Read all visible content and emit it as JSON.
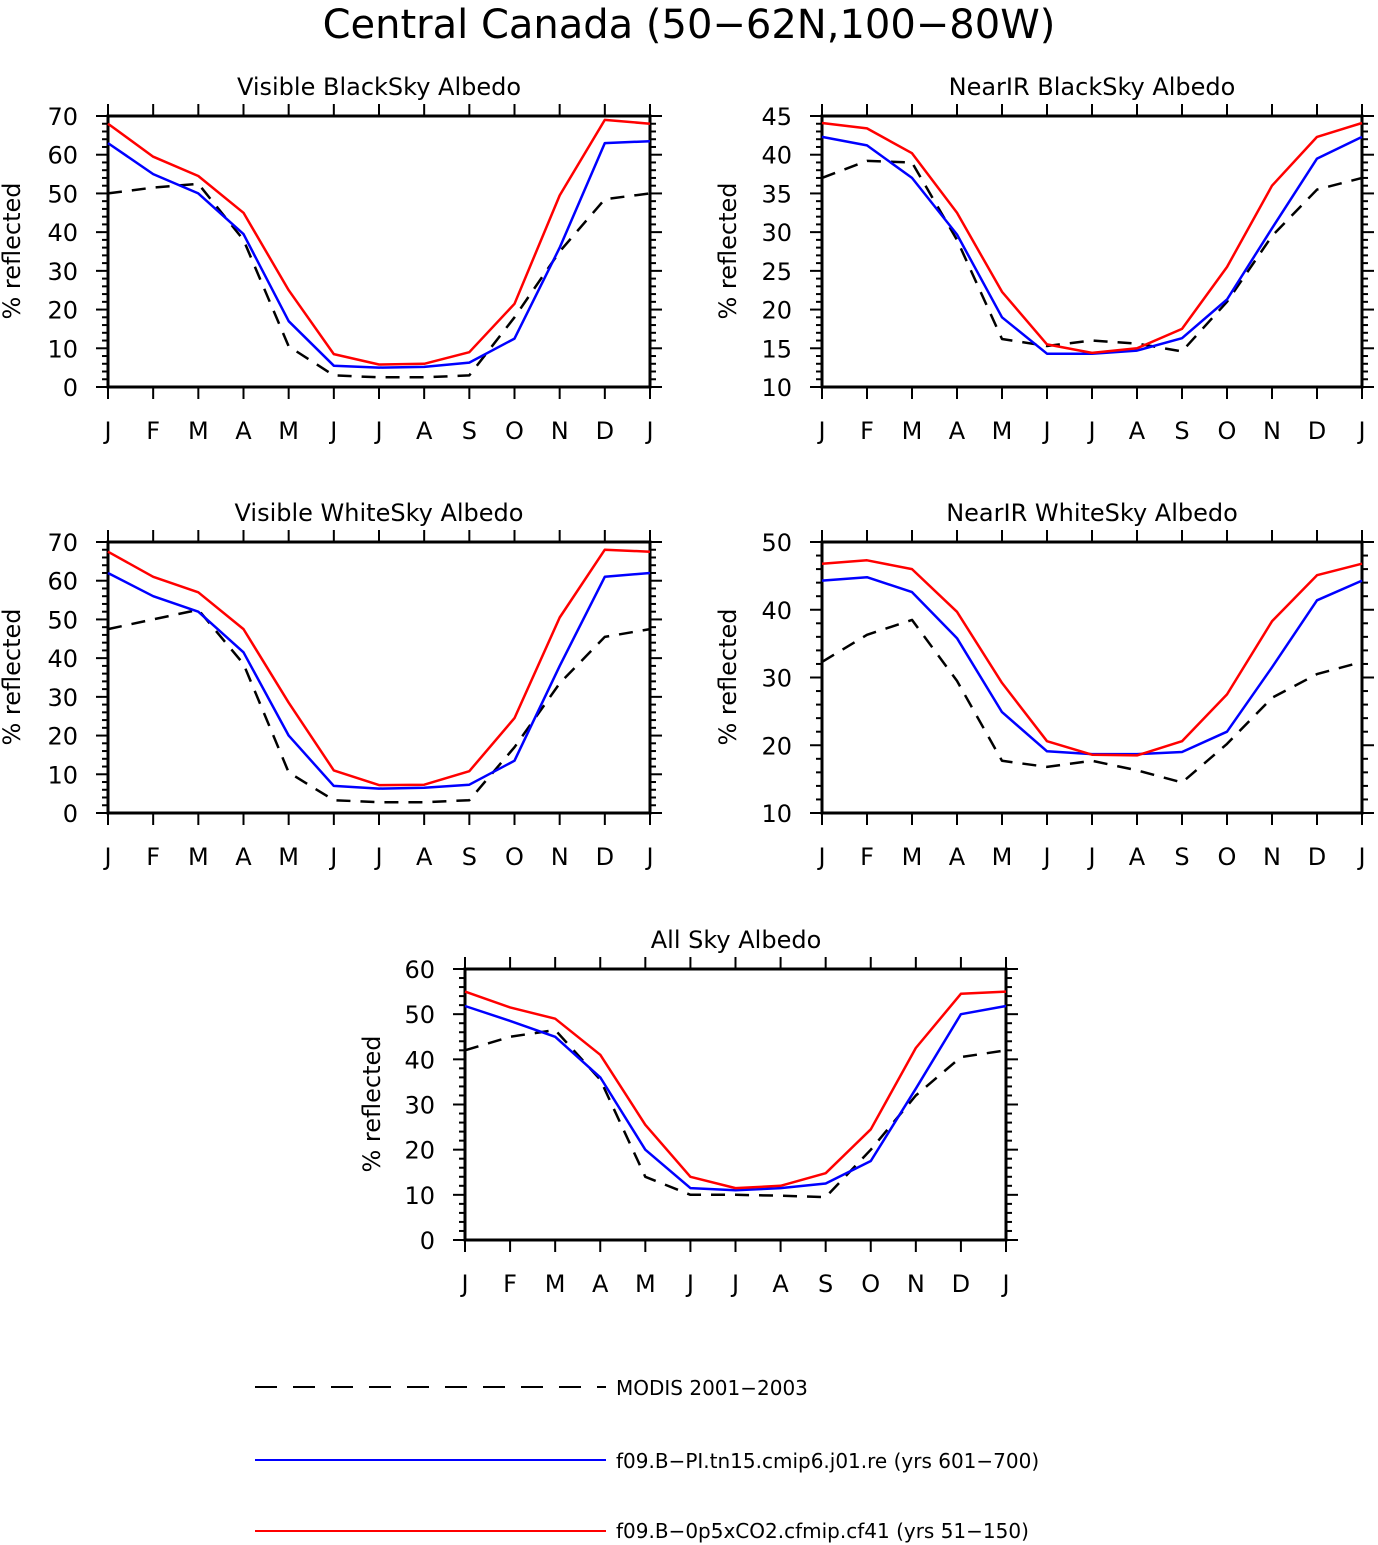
{
  "figure": {
    "title": "Central Canada (50−62N,100−80W)",
    "months": [
      "J",
      "F",
      "M",
      "A",
      "M",
      "J",
      "J",
      "A",
      "S",
      "O",
      "N",
      "D",
      "J"
    ],
    "ylabel": "% reflected"
  },
  "colors": {
    "modis": "#000000",
    "pi": "#0000ff",
    "co2": "#ff0000"
  },
  "legend": [
    {
      "key": "modis",
      "label": "MODIS 2001−2003",
      "color": "#000000",
      "dashed": true
    },
    {
      "key": "pi",
      "label": "f09.B−PI.tn15.cmip6.j01.re (yrs 601−700)",
      "color": "#0000ff",
      "dashed": false
    },
    {
      "key": "co2",
      "label": "f09.B−0p5xCO2.cfmip.cf41 (yrs 51−150)",
      "color": "#ff0000",
      "dashed": false
    }
  ],
  "chart_data": [
    {
      "type": "line",
      "title": "Visible BlackSky Albedo",
      "ylabel": "% reflected",
      "x": [
        "J",
        "F",
        "M",
        "A",
        "M",
        "J",
        "J",
        "A",
        "S",
        "O",
        "N",
        "D",
        "J"
      ],
      "ylim": [
        0,
        70
      ],
      "yticks": [
        0,
        10,
        20,
        30,
        40,
        50,
        60,
        70
      ],
      "series": [
        {
          "name": "MODIS 2001−2003",
          "values": [
            50,
            51.5,
            52.5,
            38,
            10.5,
            3,
            2.5,
            2.5,
            3,
            18,
            35,
            48.5,
            50
          ]
        },
        {
          "name": "f09.B−PI.tn15.cmip6.j01.re (yrs 601−700)",
          "values": [
            63,
            55,
            50,
            39.5,
            17,
            5.5,
            5,
            5.2,
            6.3,
            12.5,
            36,
            63,
            63.5
          ]
        },
        {
          "name": "f09.B−0p5xCO2.cfmip.cf41 (yrs 51−150)",
          "values": [
            68,
            59.5,
            54.5,
            45,
            25,
            8.5,
            5.8,
            6,
            9,
            21.5,
            49.5,
            69,
            68
          ]
        }
      ]
    },
    {
      "type": "line",
      "title": "NearIR BlackSky Albedo",
      "ylabel": "% reflected",
      "x": [
        "J",
        "F",
        "M",
        "A",
        "M",
        "J",
        "J",
        "A",
        "S",
        "O",
        "N",
        "D",
        "J"
      ],
      "ylim": [
        10,
        45
      ],
      "yticks": [
        10,
        15,
        20,
        25,
        30,
        35,
        40,
        45
      ],
      "series": [
        {
          "name": "MODIS 2001−2003",
          "values": [
            37,
            39.2,
            39,
            29,
            16.2,
            15.3,
            16,
            15.6,
            14.6,
            21,
            29.5,
            35.5,
            37
          ]
        },
        {
          "name": "f09.B−PI.tn15.cmip6.j01.re (yrs 601−700)",
          "values": [
            42.3,
            41.2,
            37,
            29.7,
            19,
            14.3,
            14.3,
            14.7,
            16.3,
            21.3,
            30.5,
            39.5,
            42.3
          ]
        },
        {
          "name": "f09.B−0p5xCO2.cfmip.cf41 (yrs 51−150)",
          "values": [
            44.1,
            43.4,
            40.2,
            32.5,
            22.3,
            15.5,
            14.4,
            15,
            17.5,
            25.5,
            36,
            42.3,
            44.1
          ]
        }
      ]
    },
    {
      "type": "line",
      "title": "Visible WhiteSky Albedo",
      "ylabel": "% reflected",
      "x": [
        "J",
        "F",
        "M",
        "A",
        "M",
        "J",
        "J",
        "A",
        "S",
        "O",
        "N",
        "D",
        "J"
      ],
      "ylim": [
        0,
        70
      ],
      "yticks": [
        0,
        10,
        20,
        30,
        40,
        50,
        60,
        70
      ],
      "series": [
        {
          "name": "MODIS 2001−2003",
          "values": [
            47.5,
            50,
            52.5,
            38.5,
            10.5,
            3.3,
            2.8,
            2.8,
            3.3,
            17,
            33.5,
            45.5,
            47.5
          ]
        },
        {
          "name": "f09.B−PI.tn15.cmip6.j01.re (yrs 601−700)",
          "values": [
            62,
            56,
            52,
            41.5,
            20,
            7,
            6.3,
            6.5,
            7.3,
            13.5,
            38,
            61,
            62
          ]
        },
        {
          "name": "f09.B−0p5xCO2.cfmip.cf41 (yrs 51−150)",
          "values": [
            67.5,
            61,
            57,
            47.5,
            28.5,
            11,
            7.2,
            7.3,
            10.8,
            24.5,
            50.5,
            68,
            67.5
          ]
        }
      ]
    },
    {
      "type": "line",
      "title": "NearIR WhiteSky Albedo",
      "ylabel": "% reflected",
      "x": [
        "J",
        "F",
        "M",
        "A",
        "M",
        "J",
        "J",
        "A",
        "S",
        "O",
        "N",
        "D",
        "J"
      ],
      "ylim": [
        10,
        50
      ],
      "yticks": [
        10,
        20,
        30,
        40,
        50
      ],
      "series": [
        {
          "name": "MODIS 2001−2003",
          "values": [
            32.3,
            36.3,
            38.5,
            29.5,
            17.7,
            16.8,
            17.7,
            16.3,
            14.5,
            20.2,
            27,
            30.5,
            32.3
          ]
        },
        {
          "name": "f09.B−PI.tn15.cmip6.j01.re (yrs 601−700)",
          "values": [
            44.3,
            44.8,
            42.6,
            35.8,
            24.9,
            19.1,
            18.7,
            18.7,
            19,
            22,
            31.5,
            41.4,
            44.3
          ]
        },
        {
          "name": "f09.B−0p5xCO2.cfmip.cf41 (yrs 51−150)",
          "values": [
            46.8,
            47.3,
            46,
            39.7,
            29.2,
            20.6,
            18.6,
            18.5,
            20.6,
            27.5,
            38.3,
            45.1,
            46.8
          ]
        }
      ]
    },
    {
      "type": "line",
      "title": "All Sky Albedo",
      "ylabel": "% reflected",
      "x": [
        "J",
        "F",
        "M",
        "A",
        "M",
        "J",
        "J",
        "A",
        "S",
        "O",
        "N",
        "D",
        "J"
      ],
      "ylim": [
        0,
        60
      ],
      "yticks": [
        0,
        10,
        20,
        30,
        40,
        50,
        60
      ],
      "series": [
        {
          "name": "MODIS 2001−2003",
          "values": [
            42,
            45,
            46.5,
            35.5,
            14,
            10,
            10,
            9.8,
            9.5,
            20,
            32,
            40.5,
            42
          ]
        },
        {
          "name": "f09.B−PI.tn15.cmip6.j01.re (yrs 601−700)",
          "values": [
            51.8,
            48.5,
            45,
            36,
            20,
            11.5,
            11,
            11.5,
            12.5,
            17.5,
            33.5,
            50,
            51.8
          ]
        },
        {
          "name": "f09.B−0p5xCO2.cfmip.cf41 (yrs 51−150)",
          "values": [
            55,
            51.5,
            49,
            41,
            25.5,
            14,
            11.5,
            12,
            14.8,
            24.5,
            42.5,
            54.5,
            55
          ]
        }
      ]
    }
  ]
}
